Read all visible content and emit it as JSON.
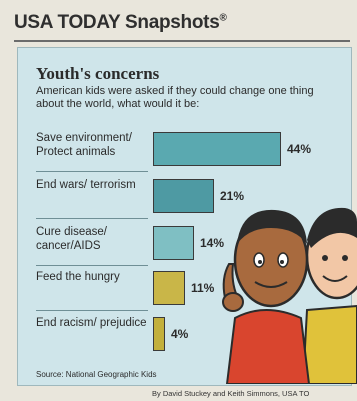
{
  "brand": {
    "name": "USA TODAY Snapshots",
    "mark": "®"
  },
  "chart_data": {
    "type": "bar",
    "orientation": "horizontal",
    "title": "Youth's concerns",
    "subtitle": "American kids were asked if they could change one thing about the world, what would it be:",
    "categories": [
      "Save environment/ Protect animals",
      "End wars/ terrorism",
      "Cure disease/ cancer/AIDS",
      "Feed the hungry",
      "End racism/ prejudice"
    ],
    "values": [
      44,
      21,
      14,
      11,
      4
    ],
    "value_labels": [
      "44%",
      "21%",
      "14%",
      "11%",
      "4%"
    ],
    "unit": "%",
    "source": "Source: National Geographic Kids",
    "byline": "By David Stuckey and Keith Simmons, USA TO"
  },
  "colors": {
    "panel": "#cfe5ea",
    "bars": [
      "#5aa9b0",
      "#4e9aa3",
      "#7fbfc3",
      "#c9b648",
      "#c3b03c"
    ]
  }
}
